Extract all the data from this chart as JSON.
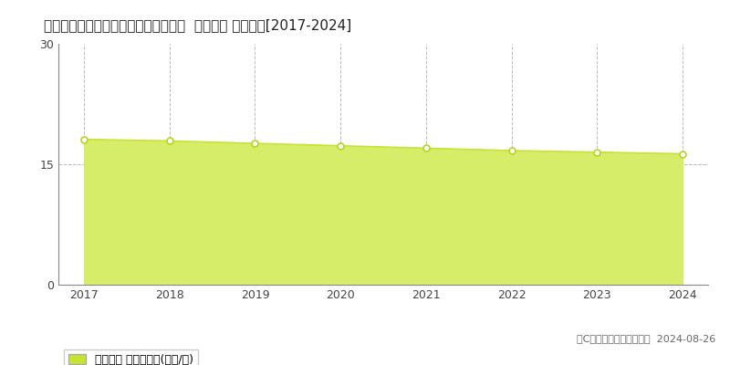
{
  "title": "静岡県氺津市青野字横橋２４５番３外  地価公示 地価推移[2017-2024]",
  "years": [
    2017,
    2018,
    2019,
    2020,
    2021,
    2022,
    2023,
    2024
  ],
  "values": [
    18.1,
    17.9,
    17.6,
    17.3,
    17.0,
    16.7,
    16.5,
    16.3
  ],
  "ylim": [
    0,
    30
  ],
  "yticks": [
    0,
    15,
    30
  ],
  "line_color": "#c8e430",
  "fill_color": "#d6ed6a",
  "fill_alpha": 1.0,
  "marker_facecolor": "#ffffff",
  "marker_edgecolor": "#b8d420",
  "marker_size": 5,
  "vgrid_color": "#bbbbbb",
  "hgrid_color": "#bbbbbb",
  "spine_color": "#888888",
  "bg_color": "#ffffff",
  "legend_label": "地価公示 平均坤単価(万円/坤)",
  "legend_marker_color": "#c8e430",
  "copyright_text": "（C）土地価格ドットコム  2024-08-26",
  "title_fontsize": 11,
  "axis_fontsize": 9,
  "legend_fontsize": 9,
  "copyright_fontsize": 8
}
